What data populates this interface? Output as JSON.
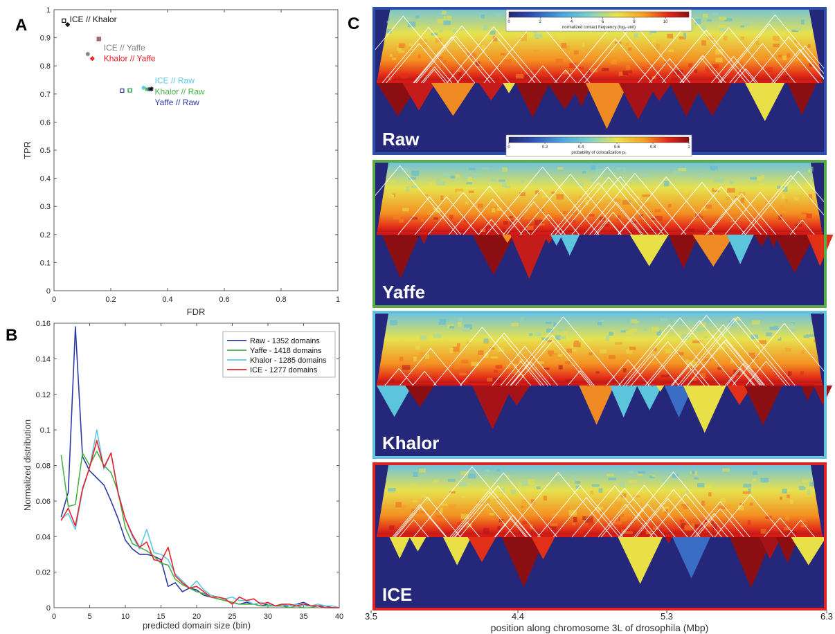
{
  "panel_letters": {
    "a": "A",
    "b": "B",
    "c": "C"
  },
  "colors": {
    "black": "#111111",
    "gray": "#808080",
    "red": "#e8202a",
    "cyan": "#5cc8e6",
    "green": "#48b048",
    "blue": "#2a3aa0",
    "heatmap_bg": "#25277b"
  },
  "chart_data": [
    {
      "panel": "A",
      "type": "scatter",
      "xlabel": "FDR",
      "ylabel": "TPR",
      "xlim": [
        0,
        1
      ],
      "ylim": [
        0,
        1
      ],
      "xticks": [
        "0",
        "0.2",
        "0.4",
        "0.6",
        "0.8",
        "1"
      ],
      "yticks": [
        "0",
        "0.1",
        "0.2",
        "0.3",
        "0.4",
        "0.5",
        "0.6",
        "0.7",
        "0.8",
        "0.9",
        "1"
      ],
      "points": [
        {
          "x": 0.035,
          "y": 0.961,
          "marker": "square",
          "color": "#111111"
        },
        {
          "x": 0.048,
          "y": 0.947,
          "marker": "star",
          "color": "#111111"
        },
        {
          "x": 0.158,
          "y": 0.896,
          "marker": "square",
          "color": "#e8202a"
        },
        {
          "x": 0.159,
          "y": 0.896,
          "marker": "star",
          "color": "#808080"
        },
        {
          "x": 0.119,
          "y": 0.842,
          "marker": "star",
          "color": "#808080"
        },
        {
          "x": 0.135,
          "y": 0.826,
          "marker": "star",
          "color": "#e8202a"
        },
        {
          "x": 0.24,
          "y": 0.712,
          "marker": "square",
          "color": "#2a3aa0"
        },
        {
          "x": 0.266,
          "y": 0.713,
          "marker": "square",
          "color": "#5cc8e6"
        },
        {
          "x": 0.268,
          "y": 0.713,
          "marker": "square",
          "color": "#48b048"
        },
        {
          "x": 0.316,
          "y": 0.722,
          "marker": "star",
          "color": "#5cc8e6"
        },
        {
          "x": 0.328,
          "y": 0.717,
          "marker": "star",
          "color": "#48b048"
        },
        {
          "x": 0.338,
          "y": 0.717,
          "marker": "star",
          "color": "#2a3aa0"
        },
        {
          "x": 0.343,
          "y": 0.718,
          "marker": "star",
          "color": "#111111"
        }
      ],
      "annotations": [
        {
          "text": "ICE // Khalor",
          "x": 0.055,
          "y": 0.966,
          "color": "#111111"
        },
        {
          "text": "ICE // Yaffe",
          "x": 0.175,
          "y": 0.864,
          "color": "#808080"
        },
        {
          "text": "Khalor // Yaffe",
          "x": 0.175,
          "y": 0.826,
          "color": "#e8202a"
        },
        {
          "text": "ICE // Raw",
          "x": 0.355,
          "y": 0.748,
          "color": "#5cc8e6"
        },
        {
          "text": "Khalor // Raw",
          "x": 0.355,
          "y": 0.708,
          "color": "#48b048"
        },
        {
          "text": "Yaffe // Raw",
          "x": 0.355,
          "y": 0.67,
          "color": "#2a3aa0"
        }
      ]
    },
    {
      "panel": "B",
      "type": "line",
      "xlabel": "predicted domain size (bin)",
      "ylabel": "Normalized distribution",
      "xlim": [
        0,
        40
      ],
      "ylim": [
        0,
        0.16
      ],
      "xticks": [
        "0",
        "5",
        "10",
        "15",
        "20",
        "25",
        "30",
        "35",
        "40"
      ],
      "yticks": [
        "0",
        "0.02",
        "0.04",
        "0.06",
        "0.08",
        "0.1",
        "0.12",
        "0.14",
        "0.16"
      ],
      "legend_position": "top-right",
      "x": [
        1,
        2,
        3,
        4,
        5,
        6,
        7,
        8,
        9,
        10,
        11,
        12,
        13,
        14,
        15,
        16,
        17,
        18,
        19,
        20,
        21,
        22,
        23,
        24,
        25,
        26,
        27,
        28,
        29,
        30,
        31,
        32,
        33,
        34,
        35,
        36,
        37,
        38,
        39,
        40
      ],
      "series": [
        {
          "name": "Raw - 1352 domains",
          "color": "#2a3aa0",
          "values": [
            0.051,
            0.065,
            0.158,
            0.085,
            0.077,
            0.073,
            0.069,
            0.06,
            0.05,
            0.038,
            0.033,
            0.03,
            0.03,
            0.029,
            0.027,
            0.012,
            0.014,
            0.009,
            0.011,
            0.01,
            0.007,
            0.006,
            0.005,
            0.004,
            0.003,
            0.002,
            0.003,
            0.002,
            0.001,
            0.002,
            0.001,
            0.001,
            0.001,
            0.002,
            0.003,
            0.001,
            0.001,
            0.001,
            0.0,
            0.0
          ]
        },
        {
          "name": "Yaffe - 1418 domains",
          "color": "#48b048",
          "values": [
            0.086,
            0.057,
            0.058,
            0.087,
            0.08,
            0.088,
            0.08,
            0.076,
            0.065,
            0.045,
            0.036,
            0.034,
            0.032,
            0.029,
            0.025,
            0.024,
            0.016,
            0.013,
            0.011,
            0.009,
            0.008,
            0.006,
            0.005,
            0.004,
            0.003,
            0.002,
            0.002,
            0.002,
            0.001,
            0.001,
            0.001,
            0.001,
            0.0,
            0.001,
            0.0,
            0.0,
            0.001,
            0.0,
            0.0,
            0.0
          ]
        },
        {
          "name": "Khalor - 1285 domains",
          "color": "#5cc8e6",
          "values": [
            0.05,
            0.053,
            0.044,
            0.066,
            0.079,
            0.1,
            0.078,
            0.087,
            0.065,
            0.05,
            0.04,
            0.033,
            0.044,
            0.031,
            0.03,
            0.027,
            0.019,
            0.015,
            0.011,
            0.015,
            0.01,
            0.007,
            0.006,
            0.005,
            0.006,
            0.004,
            0.004,
            0.002,
            0.003,
            0.002,
            0.001,
            0.002,
            0.001,
            0.002,
            0.001,
            0.001,
            0.002,
            0.001,
            0.001,
            0.0
          ]
        },
        {
          "name": "ICE - 1277 domains",
          "color": "#e8202a",
          "values": [
            0.049,
            0.056,
            0.046,
            0.067,
            0.079,
            0.094,
            0.079,
            0.087,
            0.064,
            0.05,
            0.041,
            0.034,
            0.037,
            0.027,
            0.026,
            0.034,
            0.018,
            0.014,
            0.011,
            0.012,
            0.009,
            0.006,
            0.006,
            0.005,
            0.002,
            0.006,
            0.004,
            0.005,
            0.002,
            0.003,
            0.001,
            0.002,
            0.002,
            0.001,
            0.002,
            0.001,
            0.001,
            0.0,
            0.0,
            0.0
          ]
        }
      ]
    },
    {
      "panel": "C",
      "type": "heatmap",
      "xlabel": "position along chromosome 3L of drosophila (Mbp)",
      "xticks": [
        "3.5",
        "4.4",
        "5.3",
        "6.3"
      ],
      "colorbar_top": {
        "label": "normalized contact frequency (log₂-unit)",
        "ticks": [
          "0",
          "2",
          "4",
          "6",
          "8",
          "10"
        ],
        "range": [
          0,
          11.5
        ]
      },
      "colorbar_bottom": {
        "label": "probability of colocalization p₀",
        "ticks": [
          "0",
          "0.2",
          "0.4",
          "0.6",
          "0.8",
          "1"
        ],
        "range": [
          0,
          1
        ]
      },
      "panels": [
        {
          "name": "Raw",
          "border": "#2f4ea8"
        },
        {
          "name": "Yaffe",
          "border": "#58ad46"
        },
        {
          "name": "Khalor",
          "border": "#64c4e0"
        },
        {
          "name": "ICE",
          "border": "#e02424"
        }
      ]
    }
  ]
}
